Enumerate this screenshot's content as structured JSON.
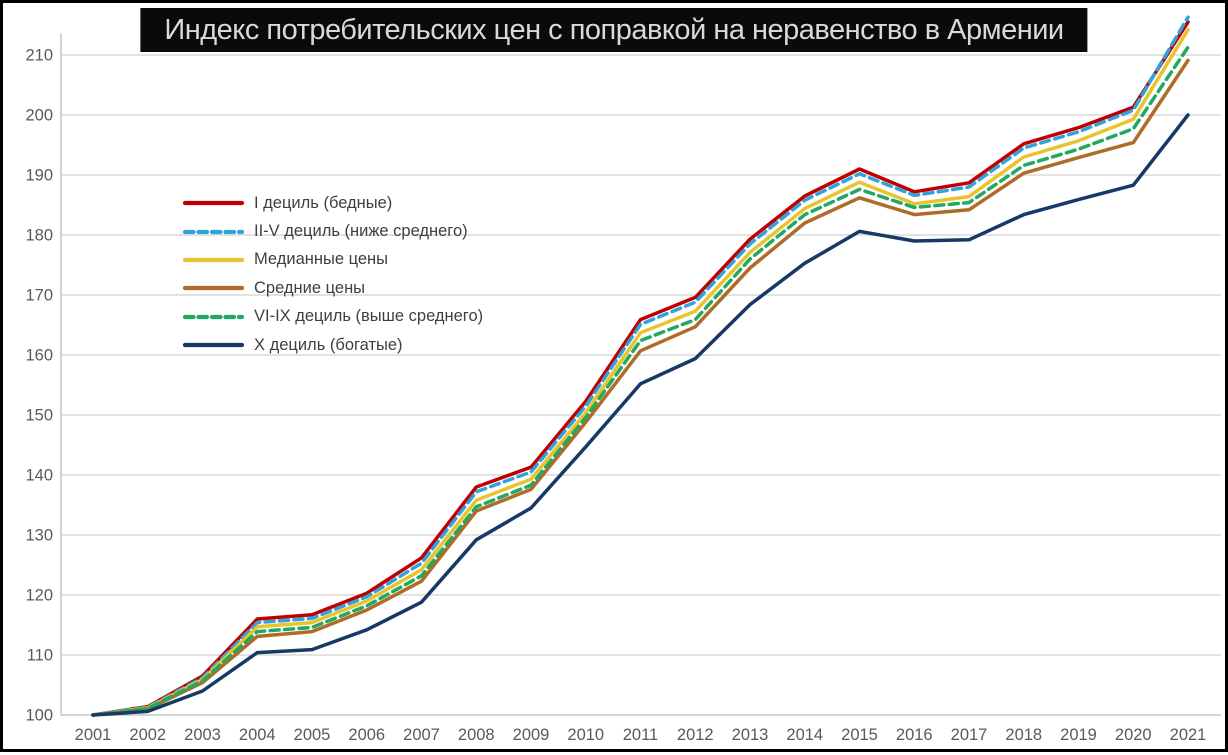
{
  "title": "Индекс потребительских цен с поправкой на неравенство в Армении",
  "colors": {
    "title_bg": "#0a0a0a",
    "title_fg": "#d9d9d9",
    "grid": "#d9d9d9",
    "baseline": "#c6c6c6",
    "axis_line": "#c9c9c9",
    "tick_label": "#595959",
    "legend_label": "#3f3f3f",
    "border": "#000000"
  },
  "axes": {
    "y_ticks": [
      100,
      110,
      120,
      130,
      140,
      150,
      160,
      170,
      180,
      190,
      200,
      210
    ],
    "x_ticks": [
      "2001",
      "2002",
      "2003",
      "2004",
      "2005",
      "2006",
      "2007",
      "2008",
      "2009",
      "2010",
      "2011",
      "2012",
      "2013",
      "2014",
      "2015",
      "2016",
      "2017",
      "2018",
      "2019",
      "2020",
      "2021"
    ]
  },
  "chart_data": {
    "type": "line",
    "title": "Индекс потребительских цен с поправкой на неравенство в Армении",
    "xlabel": "",
    "ylabel": "",
    "ylim": [
      100,
      210
    ],
    "y_tick_step": 10,
    "grid": true,
    "legend_position": "upper-left",
    "x": [
      2001,
      2002,
      2003,
      2004,
      2005,
      2006,
      2007,
      2008,
      2009,
      2010,
      2011,
      2012,
      2013,
      2014,
      2015,
      2016,
      2017,
      2018,
      2019,
      2020,
      2021
    ],
    "series": [
      {
        "name": "I дециль (бедные)",
        "color": "#c00000",
        "dash": false,
        "values": [
          100,
          101.4,
          106.5,
          116.0,
          116.7,
          120.3,
          126.2,
          138.0,
          141.3,
          152.3,
          165.9,
          169.6,
          179.3,
          186.5,
          191.0,
          187.2,
          188.7,
          195.2,
          197.9,
          201.3,
          215.5
        ]
      },
      {
        "name": "II-V дециль (ниже среднего)",
        "color": "#2fa3dc",
        "dash": true,
        "values": [
          100,
          101.3,
          106.2,
          115.4,
          116.1,
          119.7,
          125.3,
          137.2,
          140.5,
          151.5,
          165.1,
          168.8,
          178.5,
          185.8,
          190.2,
          186.6,
          188.0,
          194.5,
          197.2,
          200.8,
          216.3
        ]
      },
      {
        "name": "Медианные цены",
        "color": "#e9c32d",
        "dash": false,
        "values": [
          100,
          101.2,
          105.9,
          114.7,
          115.4,
          119.0,
          124.2,
          135.8,
          139.3,
          150.4,
          163.7,
          167.3,
          177.1,
          184.4,
          188.8,
          185.2,
          186.4,
          193.0,
          195.7,
          199.3,
          214.2
        ]
      },
      {
        "name": "Средние цены",
        "color": "#af6b28",
        "dash": false,
        "values": [
          100,
          101.0,
          105.4,
          113.1,
          113.9,
          117.5,
          122.3,
          134.0,
          137.6,
          148.8,
          160.7,
          164.7,
          174.5,
          182.0,
          186.2,
          183.4,
          184.2,
          190.3,
          192.9,
          195.4,
          209.1
        ]
      },
      {
        "name": "VI-IX дециль (выше среднего)",
        "color": "#21a95f",
        "dash": true,
        "values": [
          100,
          101.1,
          105.7,
          113.9,
          114.6,
          118.2,
          123.2,
          134.7,
          138.3,
          149.6,
          162.4,
          165.9,
          176.0,
          183.4,
          187.6,
          184.6,
          185.4,
          191.6,
          194.3,
          197.7,
          211.3
        ]
      },
      {
        "name": "X дециль (богатые)",
        "color": "#163968",
        "dash": false,
        "values": [
          100,
          100.6,
          104.0,
          110.4,
          110.9,
          114.2,
          118.8,
          129.2,
          134.5,
          144.7,
          155.2,
          159.4,
          168.4,
          175.3,
          180.6,
          179.0,
          179.2,
          183.4,
          185.9,
          188.3,
          200.0
        ]
      }
    ]
  }
}
